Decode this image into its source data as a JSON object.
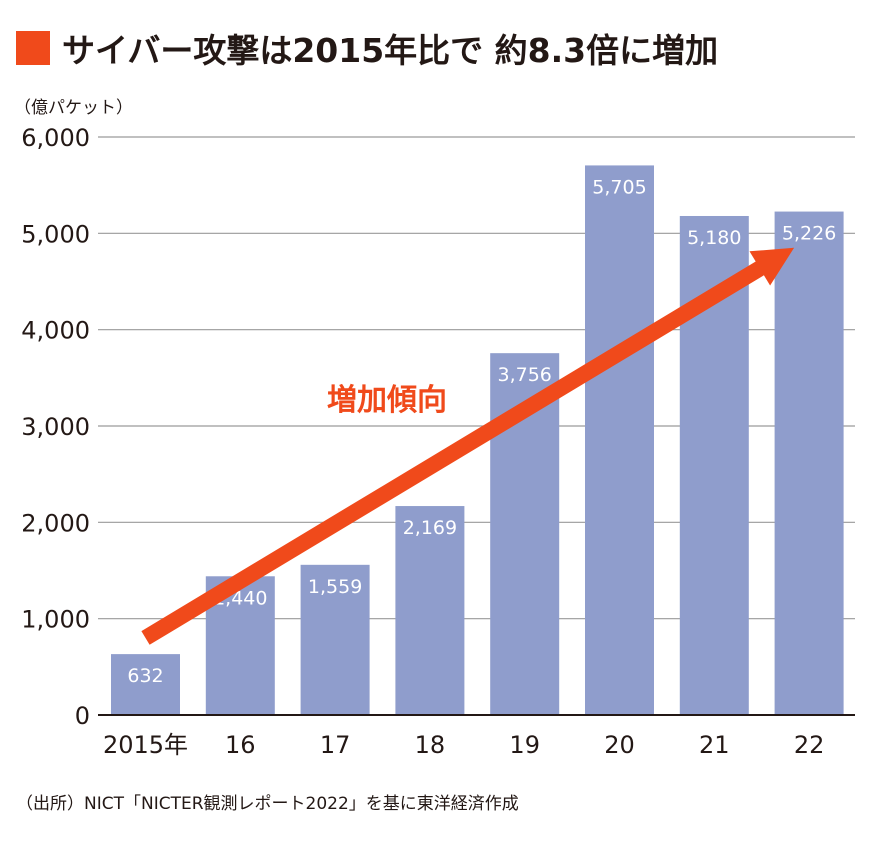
{
  "title": "サイバー攻撃は2015年比で 約8.3倍に増加",
  "colors": {
    "accent": "#f04a1b",
    "bar": "#8f9dcc",
    "grid": "#9a9a9a",
    "text": "#231815"
  },
  "source": "（出所）NICT「NICTER観測レポート2022」を基に東洋経済作成",
  "chart_data": {
    "type": "bar",
    "title": "サイバー攻撃は2015年比で 約8.3倍に増加",
    "ylabel": "（億パケット）",
    "xlabel": "",
    "categories": [
      "2015年",
      "16",
      "17",
      "18",
      "19",
      "20",
      "21",
      "22"
    ],
    "values": [
      632,
      1440,
      1559,
      2169,
      3756,
      5705,
      5180,
      5226
    ],
    "value_labels": [
      "632",
      "1,440",
      "1,559",
      "2,169",
      "3,756",
      "5,705",
      "5,180",
      "5,226"
    ],
    "ylim": [
      0,
      6000
    ],
    "yticks": [
      0,
      1000,
      2000,
      3000,
      4000,
      5000,
      6000
    ],
    "ytick_labels": [
      "0",
      "1,000",
      "2,000",
      "3,000",
      "4,000",
      "5,000",
      "6,000"
    ],
    "grid": true,
    "annotation": {
      "text": "増加傾向",
      "arrow_from": {
        "category": "2015年",
        "value": 800
      },
      "arrow_to": {
        "category": "22",
        "value": 4850
      }
    }
  }
}
